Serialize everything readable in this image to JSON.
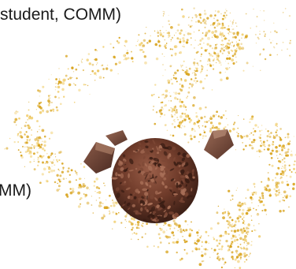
{
  "captions": {
    "top": "student, COMM)",
    "bottom": "MM)"
  },
  "illustration": {
    "subject": "chocolate-crunch-ball-with-chocolate-pieces",
    "colors": {
      "sparkle_gold": "#d9a521",
      "sparkle_light": "#f2d27a",
      "cookie_dark": "#5e3324",
      "cookie_mid": "#7b4634",
      "chocolate_chunk": "#6b4236"
    }
  }
}
